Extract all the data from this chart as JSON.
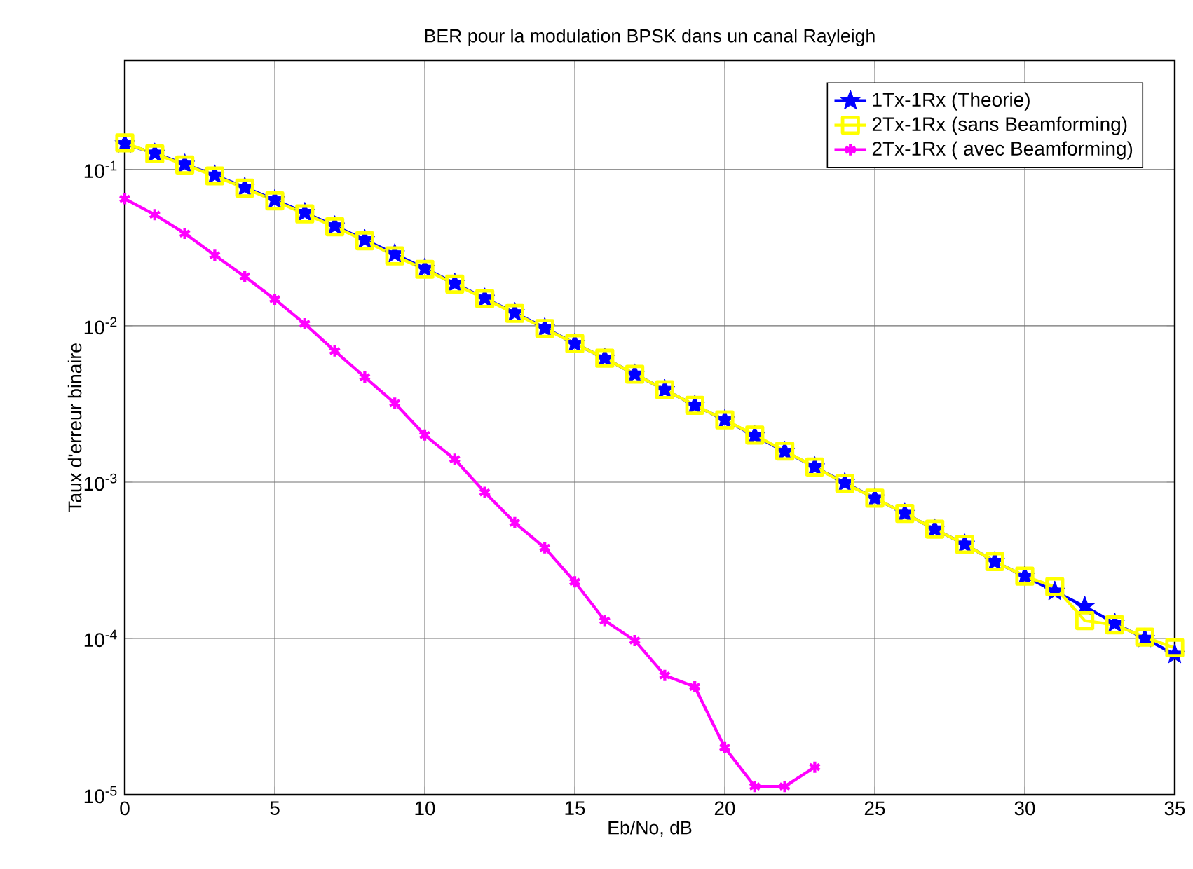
{
  "chart_data": {
    "type": "line",
    "title": "BER pour la modulation BPSK dans un canal Rayleigh",
    "xlabel": "Eb/No, dB",
    "ylabel": "Taux d'erreur binaire",
    "x": [
      0,
      1,
      2,
      3,
      4,
      5,
      6,
      7,
      8,
      9,
      10,
      11,
      12,
      13,
      14,
      15,
      16,
      17,
      18,
      19,
      20,
      21,
      22,
      23,
      24,
      25,
      26,
      27,
      28,
      29,
      30,
      31,
      32,
      33,
      34,
      35
    ],
    "series": [
      {
        "name": "1Tx-1Rx (Theorie)",
        "color": "#0000ff",
        "marker": "star",
        "values": [
          0.146,
          0.127,
          0.108,
          0.092,
          0.077,
          0.064,
          0.053,
          0.0435,
          0.0355,
          0.0288,
          0.0233,
          0.0187,
          0.015,
          0.0121,
          0.0097,
          0.0077,
          0.0062,
          0.0049,
          0.0039,
          0.0031,
          0.0025,
          0.00198,
          0.00157,
          0.00125,
          0.00099,
          0.00079,
          0.00063,
          0.0005,
          0.0004,
          0.00031,
          0.00025,
          0.0002,
          0.00016,
          0.000125,
          0.0001,
          7.9e-05
        ]
      },
      {
        "name": "2Tx-1Rx (sans Beamforming)",
        "color": "#ffff00",
        "marker": "square",
        "values": [
          0.148,
          0.126,
          0.107,
          0.091,
          0.076,
          0.063,
          0.052,
          0.043,
          0.035,
          0.028,
          0.023,
          0.0185,
          0.0149,
          0.012,
          0.0096,
          0.0077,
          0.0062,
          0.0049,
          0.0039,
          0.0031,
          0.0025,
          0.002,
          0.00158,
          0.00125,
          0.00098,
          0.00079,
          0.00063,
          0.0005,
          0.0004,
          0.00031,
          0.00025,
          0.000214,
          0.00013,
          0.000122,
          0.000102,
          8.7e-05
        ]
      },
      {
        "name": "2Tx-1Rx ( avec Beamforming)",
        "color": "#ff00ff",
        "marker": "cross",
        "values": [
          0.065,
          0.0514,
          0.039,
          0.0283,
          0.0207,
          0.0148,
          0.0103,
          0.0069,
          0.0047,
          0.0032,
          0.002,
          0.0014,
          0.00086,
          0.00055,
          0.00038,
          0.00023,
          0.00013,
          9.7e-05,
          5.8e-05,
          4.9e-05,
          2e-05,
          1.13e-05,
          1.13e-05,
          1.5e-05,
          null,
          null,
          null,
          null,
          null,
          null,
          null,
          null,
          null,
          null,
          null,
          null
        ]
      }
    ],
    "log": "y",
    "grid": true,
    "legend": "top right",
    "xlim": [
      0,
      35
    ],
    "xticks": [
      0,
      5,
      10,
      15,
      20,
      25,
      30,
      35
    ],
    "ylim": [
      1e-05,
      0.5
    ],
    "yticks": [
      {
        "value": 1e-05,
        "label": "10$^{-5}$"
      },
      {
        "value": 0.0001,
        "label": "10$^{-4}$"
      },
      {
        "value": 0.001,
        "label": "10$^{-3}$"
      },
      {
        "value": 0.01,
        "label": "10$^{-2}$"
      },
      {
        "value": 0.1,
        "label": "10$^{-1}$"
      }
    ]
  }
}
